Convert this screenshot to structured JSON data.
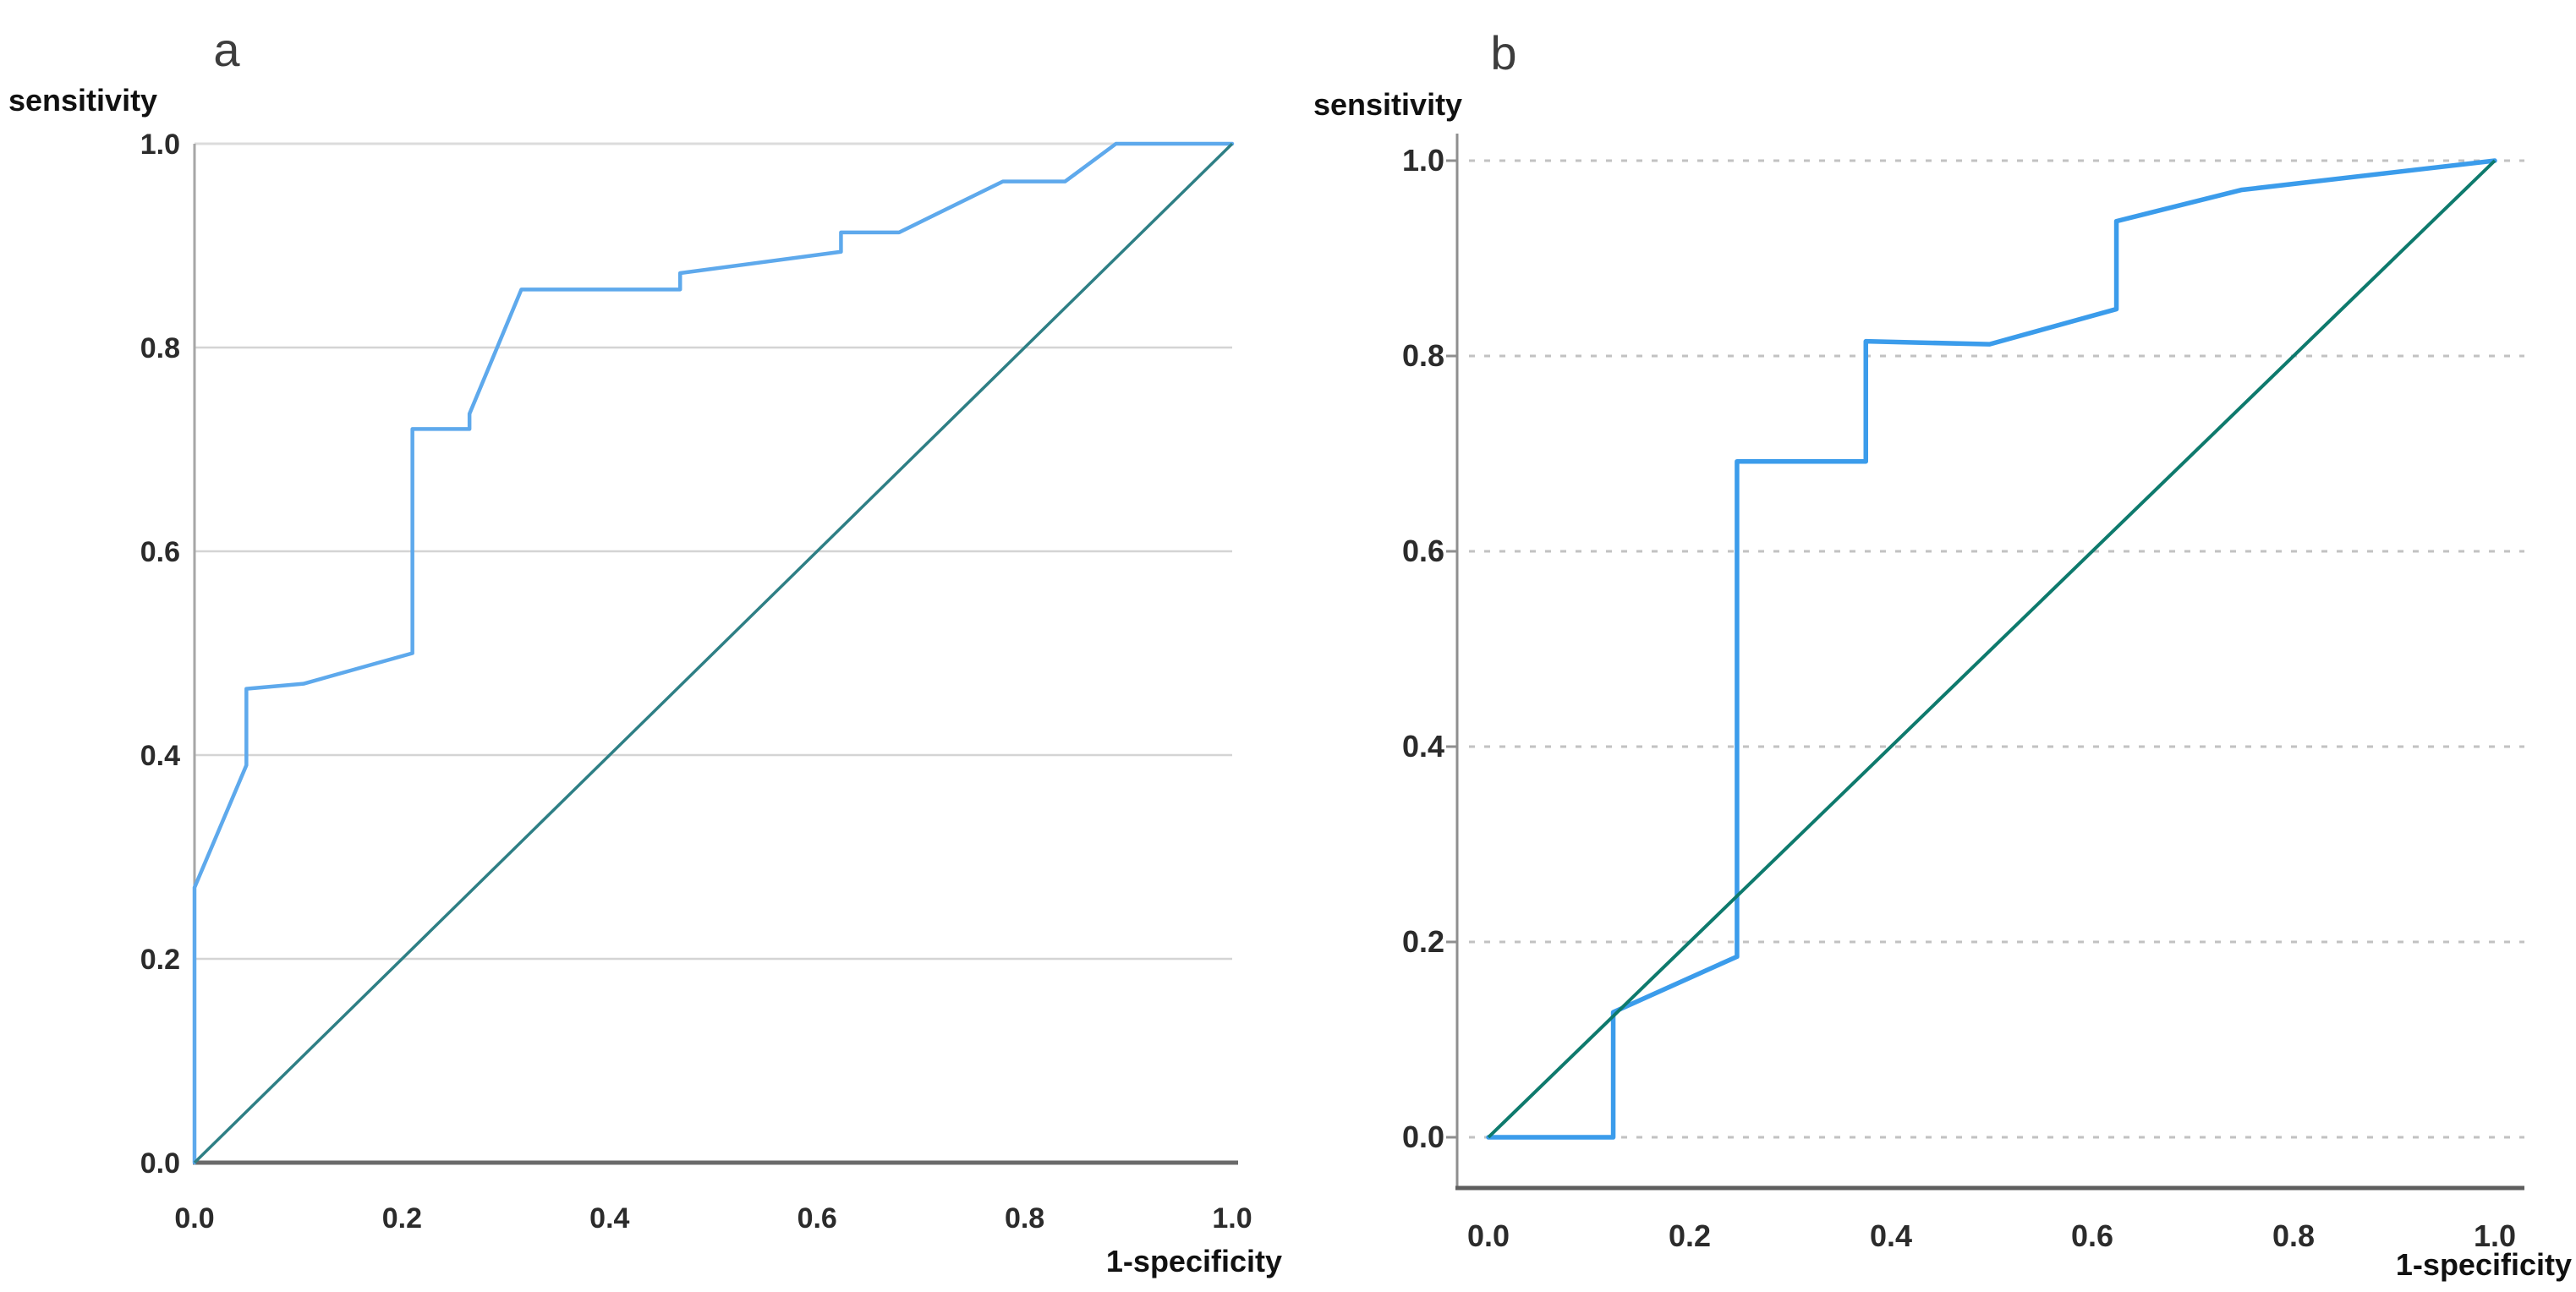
{
  "figure": {
    "background": "#ffffff",
    "description": "Two ROC curve panels"
  },
  "chart_data": [
    {
      "type": "line",
      "title": "a",
      "xlabel": "1-specificity",
      "ylabel": "sensitivity",
      "xlim": [
        0.0,
        1.0
      ],
      "ylim": [
        0.0,
        1.0
      ],
      "x_tick_labels": [
        "0.0",
        "0.2",
        "0.4",
        "0.6",
        "0.8",
        "1.0"
      ],
      "y_tick_labels": [
        "0.0",
        "0.2",
        "0.4",
        "0.6",
        "0.8",
        "1.0"
      ],
      "grid": "solid-horizontal",
      "legend": "none",
      "colors": {
        "roc_curve": "#5EA9EC",
        "reference_line": "#2E7F85",
        "gridline": "#D4D4D4",
        "top_border": "#DCDCDC",
        "left_axis": "#A6A6A6",
        "bottom_axis": "#6A6A6A",
        "tick_text": "#2B2B2B"
      },
      "series": [
        {
          "name": "ROC curve",
          "points": [
            [
              0,
              0
            ],
            [
              0,
              0.27
            ],
            [
              0.05,
              0.39
            ],
            [
              0.05,
              0.465
            ],
            [
              0.105,
              0.47
            ],
            [
              0.21,
              0.5
            ],
            [
              0.21,
              0.72
            ],
            [
              0.265,
              0.72
            ],
            [
              0.265,
              0.735
            ],
            [
              0.315,
              0.857
            ],
            [
              0.468,
              0.857
            ],
            [
              0.468,
              0.873
            ],
            [
              0.623,
              0.894
            ],
            [
              0.623,
              0.913
            ],
            [
              0.679,
              0.913
            ],
            [
              0.779,
              0.963
            ],
            [
              0.839,
              0.963
            ],
            [
              0.888,
              1.0
            ],
            [
              1.0,
              1.0
            ]
          ]
        },
        {
          "name": "reference diagonal",
          "points": [
            [
              0,
              0
            ],
            [
              1,
              1
            ]
          ]
        }
      ]
    },
    {
      "type": "line",
      "title": "b",
      "xlabel": "1-specificity",
      "ylabel": "sensitivity",
      "xlim": [
        0.0,
        1.0
      ],
      "ylim": [
        0.0,
        1.0
      ],
      "x_tick_labels": [
        "0.0",
        "0.2",
        "0.4",
        "0.6",
        "0.8",
        "1.0"
      ],
      "y_tick_labels": [
        "0.0",
        "0.2",
        "0.4",
        "0.6",
        "0.8",
        "1.0"
      ],
      "grid": "dotted-horizontal",
      "legend": "none",
      "colors": {
        "roc_curve": "#3B9CEB",
        "reference_line": "#0E7A6D",
        "gridline": "#C2C2C2",
        "left_axis": "#8F8F8F",
        "bottom_axis": "#5D5D5D",
        "tick_text": "#2B2B2B"
      },
      "series": [
        {
          "name": "ROC curve",
          "points": [
            [
              0,
              0
            ],
            [
              0.124,
              0
            ],
            [
              0.124,
              0.128
            ],
            [
              0.247,
              0.185
            ],
            [
              0.247,
              0.692
            ],
            [
              0.375,
              0.692
            ],
            [
              0.375,
              0.815
            ],
            [
              0.498,
              0.812
            ],
            [
              0.624,
              0.848
            ],
            [
              0.624,
              0.938
            ],
            [
              0.748,
              0.97
            ],
            [
              1.0,
              1.0
            ]
          ]
        },
        {
          "name": "reference diagonal",
          "points": [
            [
              0,
              0
            ],
            [
              1,
              1
            ]
          ]
        }
      ]
    }
  ]
}
